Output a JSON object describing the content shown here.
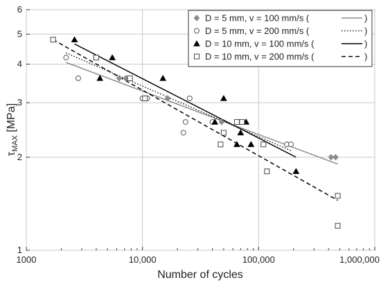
{
  "chart_data": {
    "type": "scatter",
    "xscale": "log",
    "yscale": "log",
    "xlim": [
      1000,
      1000000
    ],
    "ylim": [
      1,
      6
    ],
    "grid": true,
    "legend_position": "top-right",
    "xlabel": "Number of cycles",
    "ylabel_main": "τ",
    "ylabel_sub": "MAX",
    "ylabel_unit": " [MPa]",
    "x_ticks": [
      1000,
      10000,
      100000,
      1000000
    ],
    "x_tick_labels": [
      "1000",
      "10,000",
      "100,000",
      "1,000,000"
    ],
    "y_ticks": [
      1,
      2,
      3,
      4,
      5,
      6
    ],
    "y_tick_labels": [
      "1",
      "2",
      "3",
      "4",
      "5",
      "6"
    ],
    "series": [
      {
        "name": "D = 5 mm, v = 100 mm/s (",
        "marker": "diamond",
        "marker_color": "#8c8c8c",
        "line_style": "solid",
        "line_color": "#8c8c8c",
        "points": [
          [
            6300,
            3.6
          ],
          [
            7200,
            3.6
          ],
          [
            10500,
            3.1
          ],
          [
            16500,
            3.1
          ],
          [
            48000,
            2.6
          ],
          [
            420000,
            2.0
          ],
          [
            460000,
            2.0
          ]
        ],
        "fit": [
          [
            2200,
            4.05
          ],
          [
            480000,
            1.9
          ]
        ]
      },
      {
        "name": "D = 5 mm, v = 200 mm/s (",
        "marker": "circle",
        "marker_color": "#555555",
        "line_style": "dotted",
        "line_color": "#222222",
        "points": [
          [
            2200,
            4.2
          ],
          [
            2800,
            3.6
          ],
          [
            10000,
            3.1
          ],
          [
            11000,
            3.1
          ],
          [
            22500,
            2.4
          ],
          [
            23500,
            2.6
          ],
          [
            25500,
            3.1
          ],
          [
            40000,
            2.6
          ],
          [
            175000,
            2.2
          ],
          [
            190000,
            2.2
          ]
        ],
        "fit": [
          [
            2200,
            4.35
          ],
          [
            190000,
            2.1
          ]
        ]
      },
      {
        "name": "D = 10 mm, v = 100 mm/s (",
        "marker": "triangle",
        "marker_color": "#000000",
        "line_style": "solid",
        "line_color": "#000000",
        "points": [
          [
            2600,
            4.8
          ],
          [
            4300,
            3.6
          ],
          [
            5500,
            4.2
          ],
          [
            15000,
            3.6
          ],
          [
            42000,
            2.6
          ],
          [
            50000,
            3.1
          ],
          [
            65000,
            2.2
          ],
          [
            70000,
            2.4
          ],
          [
            78000,
            2.6
          ],
          [
            86000,
            2.2
          ],
          [
            210000,
            1.8
          ]
        ],
        "fit": [
          [
            2600,
            4.65
          ],
          [
            210000,
            2.0
          ]
        ]
      },
      {
        "name": "D = 10 mm, v = 200 mm/s (",
        "marker": "square",
        "marker_color": "#444444",
        "line_style": "dashed",
        "line_color": "#000000",
        "points": [
          [
            1700,
            4.8
          ],
          [
            4000,
            4.2
          ],
          [
            7800,
            3.6
          ],
          [
            10500,
            3.1
          ],
          [
            47000,
            2.2
          ],
          [
            50000,
            2.4
          ],
          [
            65000,
            2.6
          ],
          [
            72000,
            2.6
          ],
          [
            110000,
            2.2
          ],
          [
            118000,
            1.8
          ],
          [
            480000,
            1.5
          ],
          [
            480000,
            1.2
          ]
        ],
        "fit": [
          [
            1700,
            4.8
          ],
          [
            480000,
            1.45
          ]
        ]
      }
    ],
    "legend_close": ")"
  }
}
